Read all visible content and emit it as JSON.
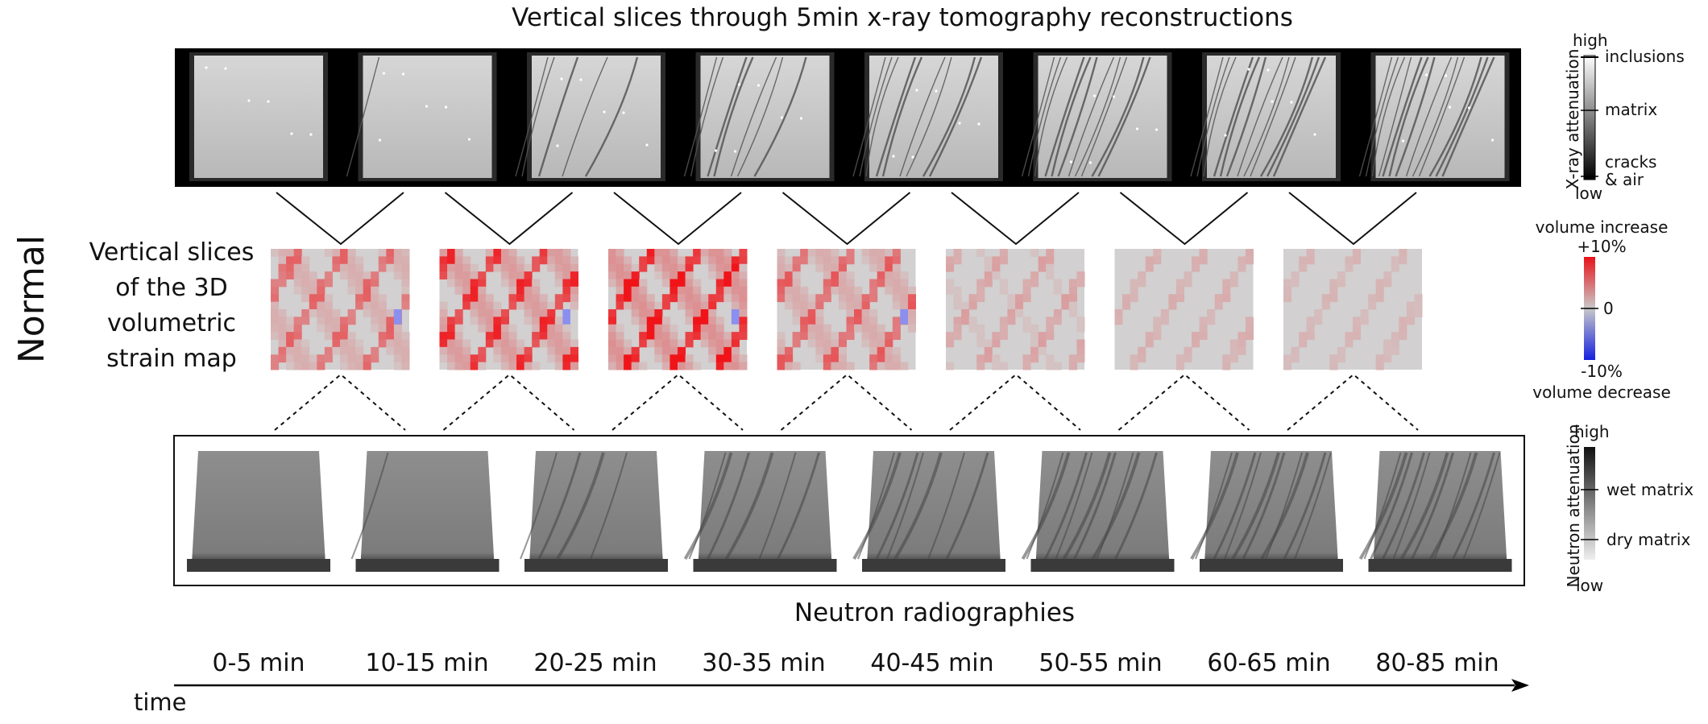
{
  "title": "Vertical slices through 5min x-ray tomography reconstructions",
  "row_label": "Normal",
  "strain_label": [
    "Vertical slices",
    "of the 3D",
    "volumetric",
    "strain map"
  ],
  "neutron_title": "Neutron radiographies",
  "time_axis_label": "time",
  "time_labels": [
    "0-5 min",
    "10-15 min",
    "20-25 min",
    "30-35 min",
    "40-45 min",
    "50-55 min",
    "60-65 min",
    "80-85 min"
  ],
  "xray_colorbar": {
    "axis_label": "X-ray attenuation",
    "high": "high",
    "low": "low",
    "labels": [
      "inclusions",
      "matrix",
      "cracks",
      "& air"
    ]
  },
  "strain_colorbar": {
    "top_label": "volume increase",
    "bottom_label": "volume decrease",
    "max": "+10%",
    "mid": "0",
    "min": "-10%",
    "colors": [
      "#e8131a",
      "#c8c8c8",
      "#1520e0"
    ]
  },
  "neutron_colorbar": {
    "axis_label": "Neutron attenuation",
    "high": "high",
    "low": "low",
    "labels": [
      "wet matrix",
      "dry matrix"
    ]
  },
  "panel_crack_levels": [
    0.0,
    0.08,
    0.35,
    0.5,
    0.62,
    0.75,
    0.85,
    0.9
  ],
  "strain_intensity": [
    0.55,
    0.85,
    1.0,
    0.6,
    0.25,
    0.18,
    0.15
  ]
}
